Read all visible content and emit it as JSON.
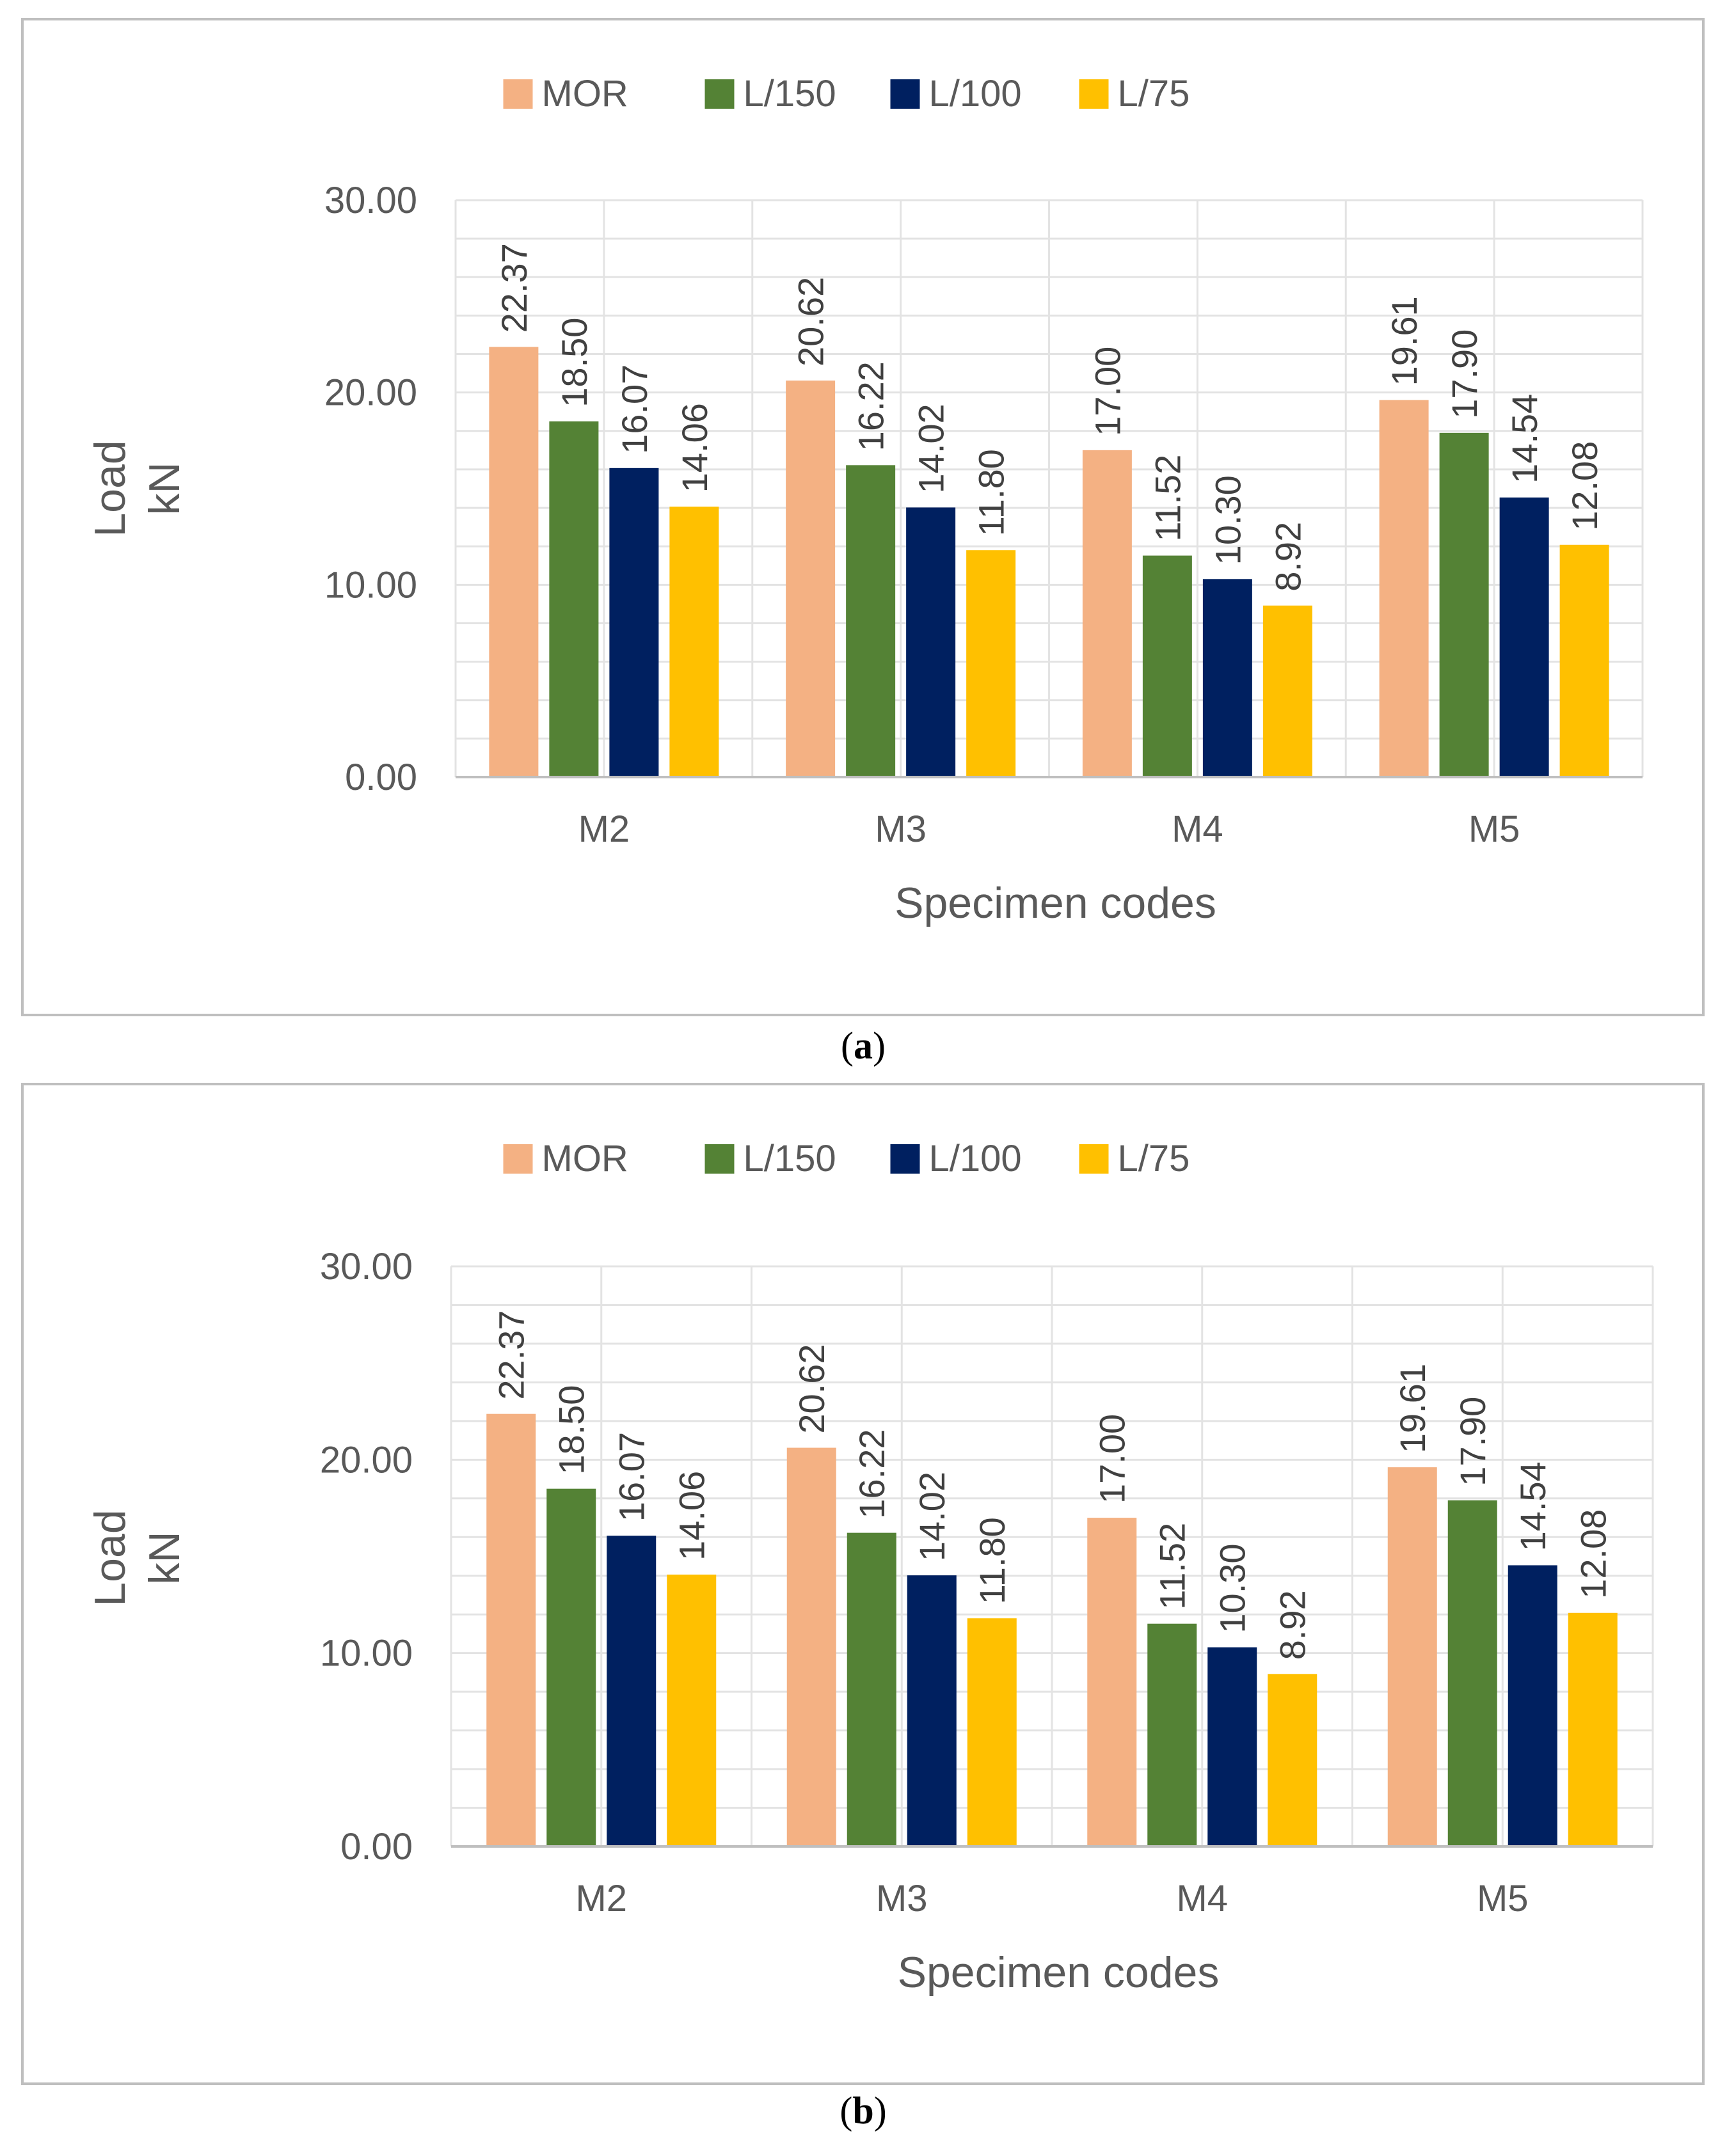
{
  "colors": {
    "MOR": "#F4B183",
    "L/150": "#548235",
    "L/100": "#002060",
    "L/75": "#FFC000",
    "grid": "#E3E3E3",
    "border": "#BFBFBF",
    "axis": "#BFBFBF"
  },
  "chart_data": [
    {
      "type": "bar",
      "panel_label": "a",
      "caption_left": "(",
      "caption_right": ")",
      "categories": [
        "M2",
        "M3",
        "M4",
        "M5"
      ],
      "series": [
        {
          "name": "MOR",
          "values": [
            22.37,
            20.62,
            17.0,
            19.61
          ],
          "labels": [
            "22.37",
            "20.62",
            "17.00",
            "19.61"
          ]
        },
        {
          "name": "L/150",
          "values": [
            18.5,
            16.22,
            11.52,
            17.9
          ],
          "labels": [
            "18.50",
            "16.22",
            "11.52",
            "17.90"
          ]
        },
        {
          "name": "L/100",
          "values": [
            16.07,
            14.02,
            10.3,
            14.54
          ],
          "labels": [
            "16.07",
            "14.02",
            "10.30",
            "14.54"
          ]
        },
        {
          "name": "L/75",
          "values": [
            14.06,
            11.8,
            8.92,
            12.08
          ],
          "labels": [
            "14.06",
            "11.80",
            "8.92",
            "12.08"
          ]
        }
      ],
      "yticks": [
        "0.00",
        "10.00",
        "20.00",
        "30.00"
      ],
      "ylim": [
        0,
        30
      ],
      "ylabel_line1": "Load",
      "ylabel_line2": "kN",
      "xlabel": "Specimen codes",
      "legend_position": "top",
      "grid": true
    },
    {
      "type": "bar",
      "panel_label": "b",
      "caption_left": "(",
      "caption_right": ")",
      "categories": [
        "M2",
        "M3",
        "M4",
        "M5"
      ],
      "series": [
        {
          "name": "MOR",
          "values": [
            22.37,
            20.62,
            17.0,
            19.61
          ],
          "labels": [
            "22.37",
            "20.62",
            "17.00",
            "19.61"
          ]
        },
        {
          "name": "L/150",
          "values": [
            18.5,
            16.22,
            11.52,
            17.9
          ],
          "labels": [
            "18.50",
            "16.22",
            "11.52",
            "17.90"
          ]
        },
        {
          "name": "L/100",
          "values": [
            16.07,
            14.02,
            10.3,
            14.54
          ],
          "labels": [
            "16.07",
            "14.02",
            "10.30",
            "14.54"
          ]
        },
        {
          "name": "L/75",
          "values": [
            14.06,
            11.8,
            8.92,
            12.08
          ],
          "labels": [
            "14.06",
            "11.80",
            "8.92",
            "12.08"
          ]
        }
      ],
      "yticks": [
        "0.00",
        "10.00",
        "20.00",
        "30.00"
      ],
      "ylim": [
        0,
        30
      ],
      "ylabel_line1": "Load",
      "ylabel_line2": "kN",
      "xlabel": "Specimen codes",
      "legend_position": "top",
      "grid": true
    }
  ]
}
